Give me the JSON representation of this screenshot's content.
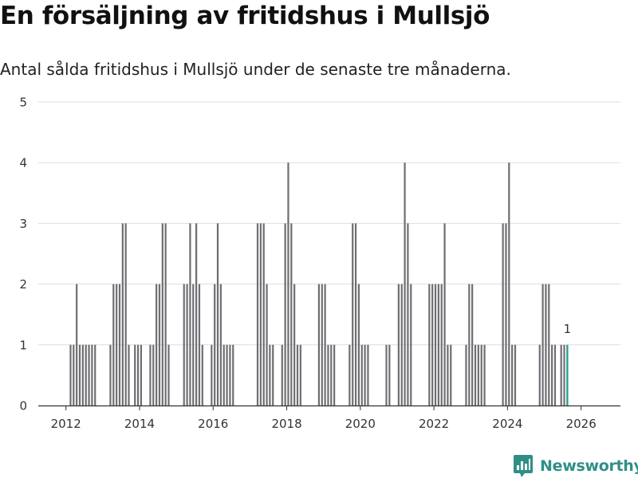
{
  "chart_data": {
    "type": "bar",
    "title": "En försäljning av fritidshus i Mullsjö",
    "subtitle": "Antal sålda fritidshus i Mullsjö under de senaste tre månaderna.",
    "xlabel": "",
    "ylabel": "",
    "ylim": [
      0,
      5
    ],
    "y_ticks": [
      0,
      1,
      2,
      3,
      4,
      5
    ],
    "x_ticks": [
      2012,
      2014,
      2016,
      2018,
      2020,
      2022,
      2024,
      2026
    ],
    "start": "2011-01",
    "values": [
      0,
      0,
      0,
      0,
      0,
      0,
      0,
      0,
      0,
      0,
      0,
      0,
      0,
      1,
      1,
      2,
      1,
      1,
      1,
      1,
      1,
      1,
      0,
      0,
      0,
      0,
      1,
      2,
      2,
      2,
      3,
      3,
      1,
      0,
      1,
      1,
      1,
      0,
      0,
      1,
      1,
      2,
      2,
      3,
      3,
      1,
      0,
      0,
      0,
      0,
      2,
      2,
      3,
      2,
      3,
      2,
      1,
      0,
      0,
      1,
      2,
      3,
      2,
      1,
      1,
      1,
      1,
      0,
      0,
      0,
      0,
      0,
      0,
      0,
      3,
      3,
      3,
      2,
      1,
      1,
      0,
      0,
      1,
      3,
      4,
      3,
      2,
      1,
      1,
      0,
      0,
      0,
      0,
      0,
      2,
      2,
      2,
      1,
      1,
      1,
      0,
      0,
      0,
      0,
      1,
      3,
      3,
      2,
      1,
      1,
      1,
      0,
      0,
      0,
      0,
      0,
      1,
      1,
      0,
      0,
      2,
      2,
      4,
      3,
      2,
      0,
      0,
      0,
      0,
      0,
      2,
      2,
      2,
      2,
      2,
      3,
      1,
      1,
      0,
      0,
      0,
      0,
      1,
      2,
      2,
      1,
      1,
      1,
      1,
      0,
      0,
      0,
      0,
      0,
      3,
      3,
      4,
      1,
      1,
      0,
      0,
      0,
      0,
      0,
      0,
      0,
      1,
      2,
      2,
      2,
      1,
      1,
      0,
      1,
      1,
      1
    ],
    "last_value_label": "1",
    "colors": {
      "bar": "#6e6e73",
      "highlight": "#2a9d8f",
      "grid": "#dddddd",
      "axis": "#333333"
    }
  },
  "brand": {
    "name": "Newsworthy",
    "color": "#2f8f87",
    "icon": "bar-chart-speech-bubble"
  }
}
